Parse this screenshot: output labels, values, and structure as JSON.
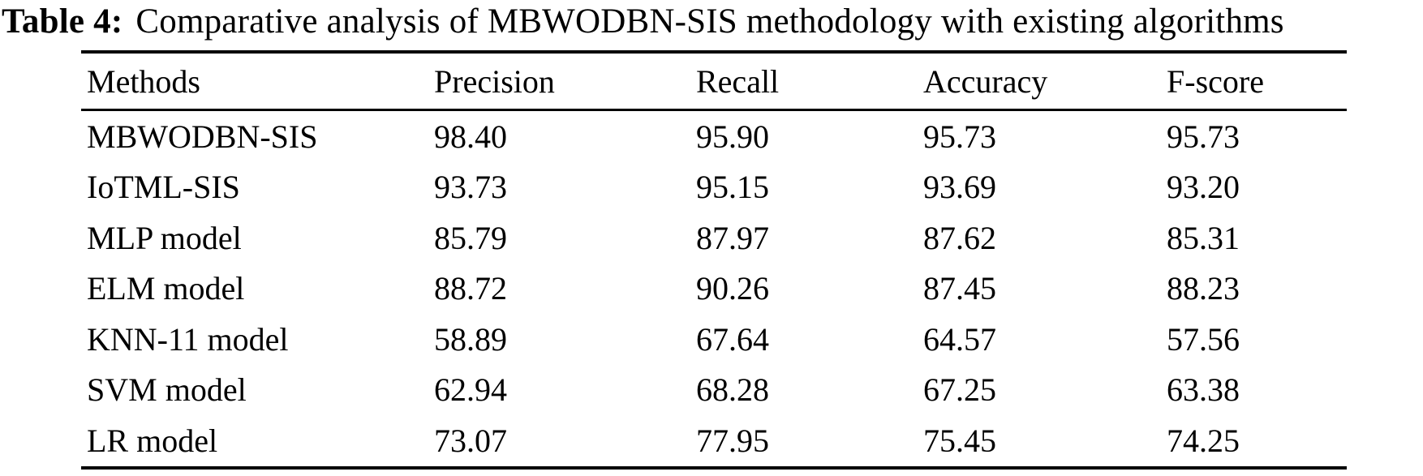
{
  "caption": {
    "label": "Table 4:",
    "text": "Comparative analysis of MBWODBN-SIS methodology with existing algorithms"
  },
  "table": {
    "columns": [
      "Methods",
      "Precision",
      "Recall",
      "Accuracy",
      "F-score"
    ],
    "rows": [
      [
        "MBWODBN-SIS",
        "98.40",
        "95.90",
        "95.73",
        "95.73"
      ],
      [
        "IoTML-SIS",
        "93.73",
        "95.15",
        "93.69",
        "93.20"
      ],
      [
        "MLP model",
        "85.79",
        "87.97",
        "87.62",
        "85.31"
      ],
      [
        "ELM model",
        "88.72",
        "90.26",
        "87.45",
        "88.23"
      ],
      [
        "KNN-11 model",
        "58.89",
        "67.64",
        "64.57",
        "57.56"
      ],
      [
        "SVM model",
        "62.94",
        "68.28",
        "67.25",
        "63.38"
      ],
      [
        "LR model",
        "73.07",
        "77.95",
        "75.45",
        "74.25"
      ]
    ]
  },
  "chart_data": {
    "type": "table",
    "title": "Table 4: Comparative analysis of MBWODBN-SIS methodology with existing algorithms",
    "columns": [
      "Methods",
      "Precision",
      "Recall",
      "Accuracy",
      "F-score"
    ],
    "rows": [
      {
        "method": "MBWODBN-SIS",
        "precision": 98.4,
        "recall": 95.9,
        "accuracy": 95.73,
        "f_score": 95.73
      },
      {
        "method": "IoTML-SIS",
        "precision": 93.73,
        "recall": 95.15,
        "accuracy": 93.69,
        "f_score": 93.2
      },
      {
        "method": "MLP model",
        "precision": 85.79,
        "recall": 87.97,
        "accuracy": 87.62,
        "f_score": 85.31
      },
      {
        "method": "ELM model",
        "precision": 88.72,
        "recall": 90.26,
        "accuracy": 87.45,
        "f_score": 88.23
      },
      {
        "method": "KNN-11 model",
        "precision": 58.89,
        "recall": 67.64,
        "accuracy": 64.57,
        "f_score": 57.56
      },
      {
        "method": "SVM model",
        "precision": 62.94,
        "recall": 68.28,
        "accuracy": 67.25,
        "f_score": 63.38
      },
      {
        "method": "LR model",
        "precision": 73.07,
        "recall": 77.95,
        "accuracy": 75.45,
        "f_score": 74.25
      }
    ]
  }
}
